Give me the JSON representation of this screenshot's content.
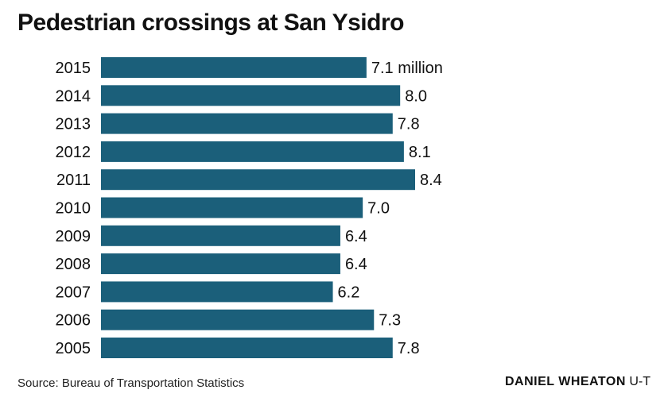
{
  "chart_data": {
    "type": "bar",
    "orientation": "horizontal",
    "title": "Pedestrian crossings at San Ysidro",
    "categories": [
      "2015",
      "2014",
      "2013",
      "2012",
      "2011",
      "2010",
      "2009",
      "2008",
      "2007",
      "2006",
      "2005"
    ],
    "values": [
      7.1,
      8.0,
      7.8,
      8.1,
      8.4,
      7.0,
      6.4,
      6.4,
      6.2,
      7.3,
      7.8
    ],
    "value_labels": [
      "7.1 million",
      "8.0",
      "7.8",
      "8.1",
      "8.4",
      "7.0",
      "6.4",
      "6.4",
      "6.2",
      "7.3",
      "7.8"
    ],
    "xlim": [
      0,
      8.4
    ],
    "bar_color": "#1b5f7a",
    "grid": false,
    "legend": "none"
  },
  "footer": {
    "source": "Source: Bureau of Transportation Statistics",
    "credit_name": "DANIEL WHEATON",
    "credit_org": "U-T"
  }
}
